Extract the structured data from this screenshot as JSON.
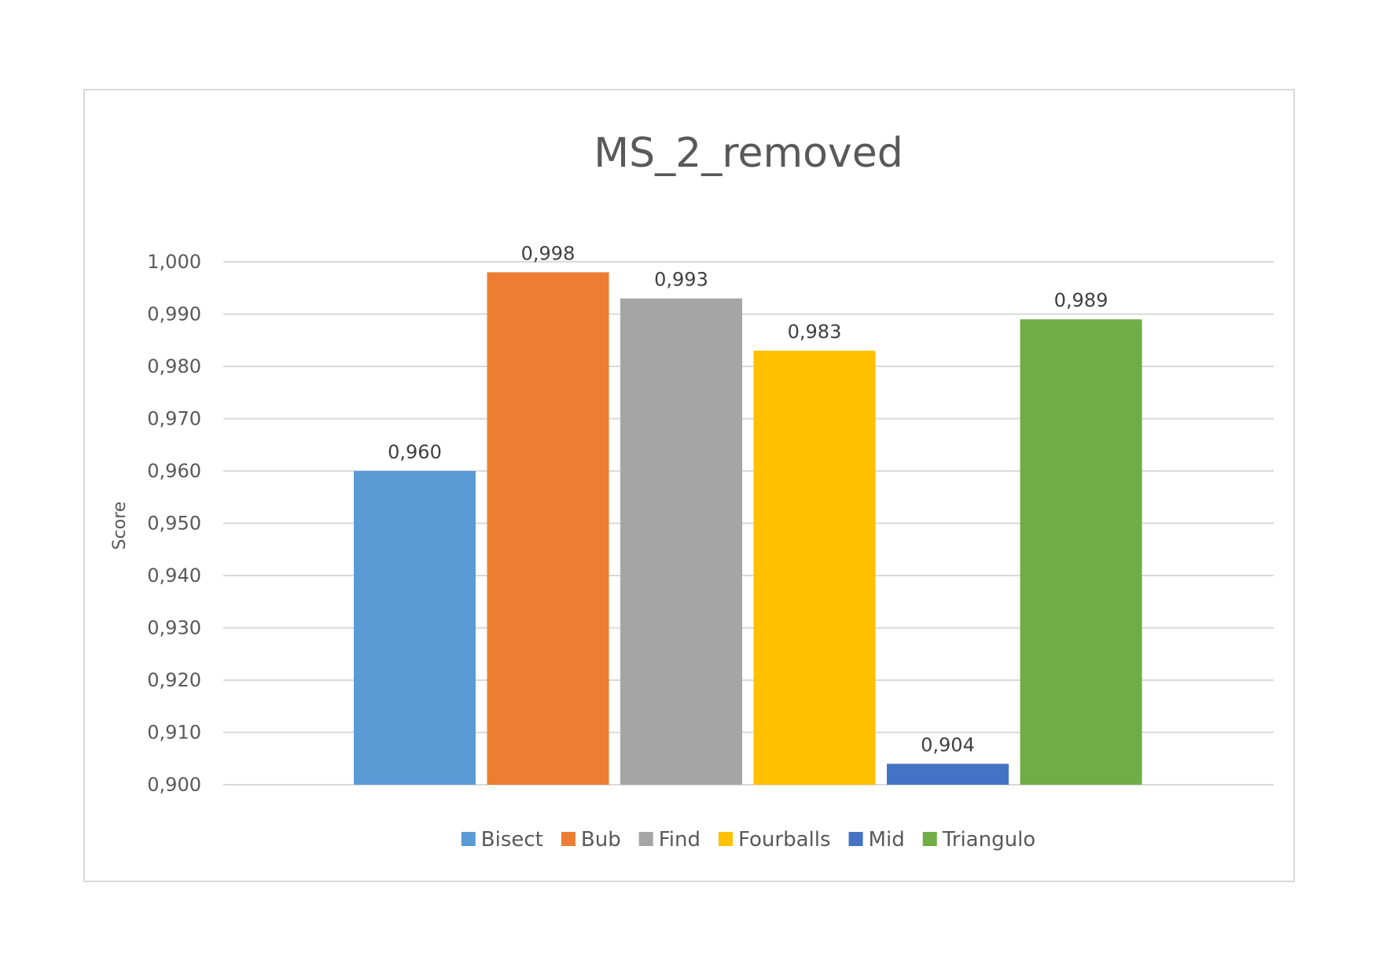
{
  "chart_data": {
    "type": "bar",
    "title": "MS_2_removed",
    "xlabel": "",
    "ylabel": "Score",
    "ylim": [
      0.9,
      1.0
    ],
    "y_ticks": [
      "0,900",
      "0,910",
      "0,920",
      "0,930",
      "0,940",
      "0,950",
      "0,960",
      "0,970",
      "0,980",
      "0,990",
      "1,000"
    ],
    "y_tick_values": [
      0.9,
      0.91,
      0.92,
      0.93,
      0.94,
      0.95,
      0.96,
      0.97,
      0.98,
      0.99,
      1.0
    ],
    "grid": true,
    "legend_position": "bottom",
    "series": [
      {
        "name": "Bisect",
        "value": 0.96,
        "label": "0,960",
        "color": "#5b9bd5"
      },
      {
        "name": "Bub",
        "value": 0.998,
        "label": "0,998",
        "color": "#ed7d31"
      },
      {
        "name": "Find",
        "value": 0.993,
        "label": "0,993",
        "color": "#a5a5a5"
      },
      {
        "name": "Fourballs",
        "value": 0.983,
        "label": "0,983",
        "color": "#ffc000"
      },
      {
        "name": "Mid",
        "value": 0.904,
        "label": "0,904",
        "color": "#4472c4"
      },
      {
        "name": "Triangulo",
        "value": 0.989,
        "label": "0,989",
        "color": "#70ad47"
      }
    ]
  }
}
